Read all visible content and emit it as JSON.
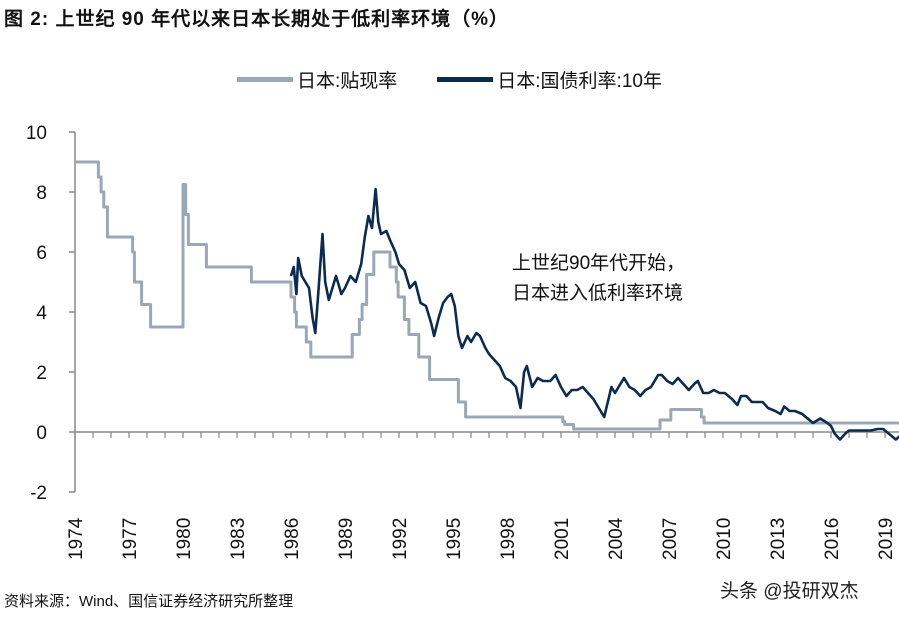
{
  "title": "图  2:  上世纪 90 年代以来日本长期处于低利率环境（%）",
  "source": "资料来源：Wind、国信证券经济研究所整理",
  "watermark": "头条 @投研双杰",
  "chart_data": {
    "type": "line",
    "title": "",
    "xlabel": "",
    "ylabel": "",
    "ylim": [
      -2,
      10
    ],
    "yticks": [
      -2,
      0,
      2,
      4,
      6,
      8,
      10
    ],
    "xlim": [
      1974,
      2020.7
    ],
    "xticks": [
      "1974",
      "1977",
      "1980",
      "1983",
      "1986",
      "1989",
      "1992",
      "1995",
      "1998",
      "2001",
      "2004",
      "2007",
      "2010",
      "2013",
      "2016",
      "2019"
    ],
    "grid": false,
    "legend_position": "top",
    "annotation": [
      "上世纪90年代开始，",
      "日本进入低利率环境"
    ],
    "series": [
      {
        "name": "日本:贴现率",
        "color": "#9aa7b4",
        "step": true,
        "points": [
          [
            1974.0,
            9.0
          ],
          [
            1975.3,
            8.5
          ],
          [
            1975.45,
            8.0
          ],
          [
            1975.6,
            7.5
          ],
          [
            1975.8,
            6.5
          ],
          [
            1977.2,
            6.0
          ],
          [
            1977.3,
            5.0
          ],
          [
            1977.7,
            4.25
          ],
          [
            1978.2,
            3.5
          ],
          [
            1980.0,
            8.25
          ],
          [
            1980.15,
            7.25
          ],
          [
            1980.3,
            6.25
          ],
          [
            1981.3,
            5.5
          ],
          [
            1983.8,
            5.0
          ],
          [
            1986.0,
            4.5
          ],
          [
            1986.2,
            4.0
          ],
          [
            1986.3,
            3.5
          ],
          [
            1986.85,
            3.0
          ],
          [
            1987.1,
            2.5
          ],
          [
            1989.4,
            3.25
          ],
          [
            1989.8,
            3.75
          ],
          [
            1989.95,
            4.25
          ],
          [
            1990.2,
            5.25
          ],
          [
            1990.6,
            6.0
          ],
          [
            1991.5,
            5.5
          ],
          [
            1991.85,
            5.0
          ],
          [
            1991.95,
            4.5
          ],
          [
            1992.3,
            3.75
          ],
          [
            1992.55,
            3.25
          ],
          [
            1993.1,
            2.5
          ],
          [
            1993.7,
            1.75
          ],
          [
            1995.3,
            1.0
          ],
          [
            1995.7,
            0.5
          ],
          [
            2001.1,
            0.35
          ],
          [
            2001.2,
            0.25
          ],
          [
            2001.7,
            0.1
          ],
          [
            2006.5,
            0.4
          ],
          [
            2007.1,
            0.75
          ],
          [
            2008.8,
            0.5
          ],
          [
            2008.95,
            0.3
          ],
          [
            2020.6,
            0.3
          ]
        ]
      },
      {
        "name": "日本:国债利率:10年",
        "color": "#0d2a4f",
        "step": false,
        "points": [
          [
            1986.0,
            5.2
          ],
          [
            1986.15,
            5.5
          ],
          [
            1986.3,
            4.6
          ],
          [
            1986.4,
            5.8
          ],
          [
            1986.6,
            5.2
          ],
          [
            1986.8,
            5.0
          ],
          [
            1987.0,
            4.8
          ],
          [
            1987.2,
            3.8
          ],
          [
            1987.35,
            3.3
          ],
          [
            1987.5,
            4.5
          ],
          [
            1987.75,
            6.6
          ],
          [
            1987.9,
            5.0
          ],
          [
            1988.1,
            4.4
          ],
          [
            1988.3,
            4.8
          ],
          [
            1988.5,
            5.2
          ],
          [
            1988.8,
            4.6
          ],
          [
            1989.0,
            4.8
          ],
          [
            1989.3,
            5.2
          ],
          [
            1989.6,
            5.0
          ],
          [
            1989.9,
            5.6
          ],
          [
            1990.1,
            6.5
          ],
          [
            1990.3,
            7.2
          ],
          [
            1990.5,
            6.8
          ],
          [
            1990.7,
            8.1
          ],
          [
            1990.85,
            7.0
          ],
          [
            1991.0,
            6.6
          ],
          [
            1991.3,
            6.7
          ],
          [
            1991.5,
            6.4
          ],
          [
            1991.8,
            6.0
          ],
          [
            1992.0,
            5.6
          ],
          [
            1992.3,
            5.4
          ],
          [
            1992.6,
            4.8
          ],
          [
            1992.9,
            5.0
          ],
          [
            1993.2,
            4.3
          ],
          [
            1993.5,
            4.2
          ],
          [
            1993.8,
            3.6
          ],
          [
            1993.95,
            3.2
          ],
          [
            1994.2,
            3.8
          ],
          [
            1994.45,
            4.3
          ],
          [
            1994.7,
            4.5
          ],
          [
            1994.9,
            4.6
          ],
          [
            1995.1,
            4.2
          ],
          [
            1995.3,
            3.2
          ],
          [
            1995.5,
            2.8
          ],
          [
            1995.8,
            3.2
          ],
          [
            1996.0,
            3.0
          ],
          [
            1996.3,
            3.3
          ],
          [
            1996.5,
            3.2
          ],
          [
            1996.8,
            2.8
          ],
          [
            1997.0,
            2.6
          ],
          [
            1997.3,
            2.4
          ],
          [
            1997.6,
            2.2
          ],
          [
            1997.9,
            1.8
          ],
          [
            1998.2,
            1.7
          ],
          [
            1998.5,
            1.5
          ],
          [
            1998.75,
            0.8
          ],
          [
            1998.95,
            2.0
          ],
          [
            1999.1,
            2.2
          ],
          [
            1999.4,
            1.5
          ],
          [
            1999.7,
            1.8
          ],
          [
            2000.0,
            1.7
          ],
          [
            2000.4,
            1.7
          ],
          [
            2000.7,
            1.9
          ],
          [
            2001.0,
            1.5
          ],
          [
            2001.3,
            1.2
          ],
          [
            2001.6,
            1.4
          ],
          [
            2001.9,
            1.4
          ],
          [
            2002.2,
            1.5
          ],
          [
            2002.5,
            1.3
          ],
          [
            2002.8,
            1.1
          ],
          [
            2003.1,
            0.8
          ],
          [
            2003.4,
            0.5
          ],
          [
            2003.6,
            1.0
          ],
          [
            2003.8,
            1.5
          ],
          [
            2004.0,
            1.3
          ],
          [
            2004.3,
            1.6
          ],
          [
            2004.5,
            1.8
          ],
          [
            2004.8,
            1.5
          ],
          [
            2005.1,
            1.4
          ],
          [
            2005.4,
            1.2
          ],
          [
            2005.7,
            1.4
          ],
          [
            2006.0,
            1.5
          ],
          [
            2006.4,
            1.9
          ],
          [
            2006.6,
            1.9
          ],
          [
            2006.9,
            1.7
          ],
          [
            2007.2,
            1.6
          ],
          [
            2007.5,
            1.8
          ],
          [
            2007.8,
            1.6
          ],
          [
            2008.1,
            1.4
          ],
          [
            2008.4,
            1.6
          ],
          [
            2008.6,
            1.7
          ],
          [
            2008.9,
            1.3
          ],
          [
            2009.2,
            1.3
          ],
          [
            2009.5,
            1.4
          ],
          [
            2009.8,
            1.3
          ],
          [
            2010.1,
            1.3
          ],
          [
            2010.5,
            1.1
          ],
          [
            2010.8,
            0.9
          ],
          [
            2011.0,
            1.2
          ],
          [
            2011.3,
            1.2
          ],
          [
            2011.6,
            1.0
          ],
          [
            2011.9,
            1.0
          ],
          [
            2012.2,
            1.0
          ],
          [
            2012.5,
            0.8
          ],
          [
            2012.9,
            0.7
          ],
          [
            2013.2,
            0.6
          ],
          [
            2013.4,
            0.85
          ],
          [
            2013.7,
            0.7
          ],
          [
            2014.0,
            0.7
          ],
          [
            2014.4,
            0.6
          ],
          [
            2014.8,
            0.4
          ],
          [
            2015.0,
            0.3
          ],
          [
            2015.4,
            0.45
          ],
          [
            2015.8,
            0.3
          ],
          [
            2016.0,
            0.2
          ],
          [
            2016.2,
            -0.05
          ],
          [
            2016.5,
            -0.25
          ],
          [
            2016.8,
            -0.05
          ],
          [
            2017.0,
            0.05
          ],
          [
            2017.4,
            0.05
          ],
          [
            2017.8,
            0.05
          ],
          [
            2018.2,
            0.05
          ],
          [
            2018.6,
            0.1
          ],
          [
            2018.9,
            0.1
          ],
          [
            2019.2,
            -0.05
          ],
          [
            2019.6,
            -0.25
          ],
          [
            2019.9,
            -0.1
          ],
          [
            2020.1,
            0.0
          ],
          [
            2020.5,
            0.02
          ]
        ]
      }
    ]
  }
}
